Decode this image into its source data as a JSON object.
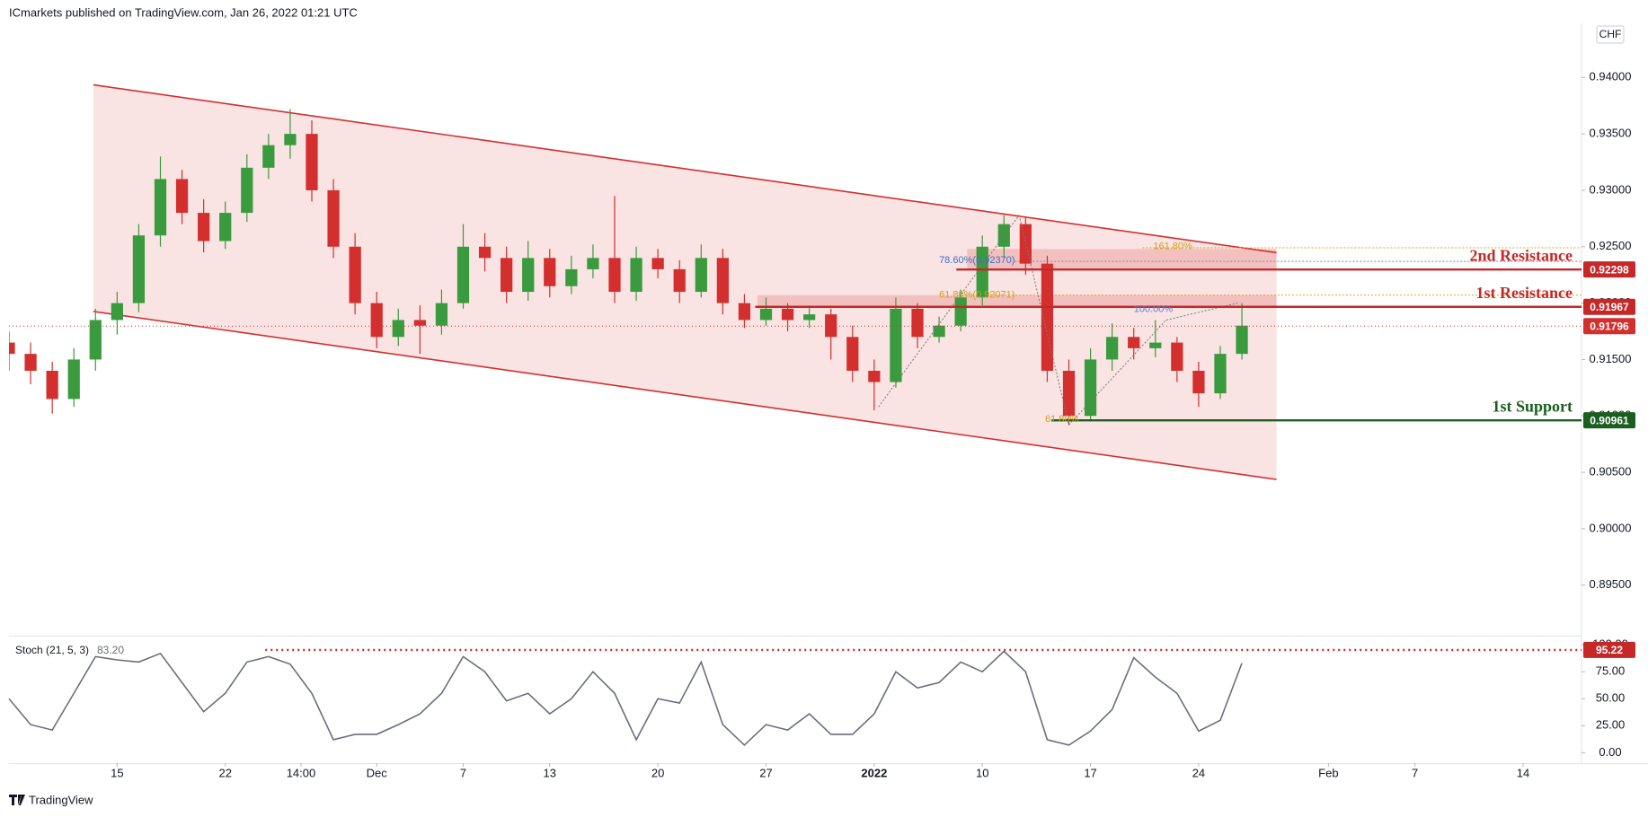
{
  "chart_data": {
    "type": "candlestick",
    "header": "ICmarkets published on TradingView.com, Jan 26, 2022 01:21 UTC",
    "currency": "CHF",
    "footer": "TradingView",
    "up_color": "#3a9a3e",
    "down_color": "#d32f2f",
    "xlim": [
      0,
      72.7
    ],
    "xticks": [
      {
        "value": 5,
        "label": "15"
      },
      {
        "value": 10,
        "label": "22"
      },
      {
        "value": 13.5,
        "label": "14:00"
      },
      {
        "value": 17,
        "label": "Dec"
      },
      {
        "value": 21,
        "label": "7"
      },
      {
        "value": 25,
        "label": "13"
      },
      {
        "value": 30,
        "label": "20"
      },
      {
        "value": 35,
        "label": "27"
      },
      {
        "value": 40,
        "label": "2022"
      },
      {
        "value": 45,
        "label": "10"
      },
      {
        "value": 50,
        "label": "17"
      },
      {
        "value": 55,
        "label": "24"
      },
      {
        "value": 61,
        "label": "Feb"
      },
      {
        "value": 65,
        "label": "7"
      },
      {
        "value": 70,
        "label": "14"
      }
    ],
    "ylim": [
      0.8906,
      0.9448
    ],
    "yticks": [
      {
        "value": 0.895,
        "label": "0.89500"
      },
      {
        "value": 0.9,
        "label": "0.90000"
      },
      {
        "value": 0.905,
        "label": "0.90500"
      },
      {
        "value": 0.91,
        "label": "0.91000"
      },
      {
        "value": 0.915,
        "label": "0.91500"
      },
      {
        "value": 0.92,
        "label": "0.92000"
      },
      {
        "value": 0.925,
        "label": "0.92500"
      },
      {
        "value": 0.93,
        "label": "0.93000"
      },
      {
        "value": 0.935,
        "label": "0.93500"
      },
      {
        "value": 0.94,
        "label": "0.94000"
      }
    ],
    "grid": false,
    "candles": {
      "x": [
        0,
        1,
        2,
        3,
        4,
        5,
        6,
        7,
        8,
        9,
        10,
        11,
        12,
        13,
        14,
        15,
        16,
        17,
        18,
        19,
        20,
        21,
        22,
        23,
        24,
        25,
        26,
        27,
        28,
        29,
        30,
        31,
        32,
        33,
        34,
        35,
        36,
        37,
        38,
        39,
        40,
        41,
        42,
        43,
        44,
        45,
        46,
        47,
        48,
        49,
        50,
        51,
        52,
        53,
        54,
        55,
        56,
        57
      ],
      "open": [
        0.9165,
        0.9155,
        0.914,
        0.9115,
        0.915,
        0.9185,
        0.92,
        0.926,
        0.931,
        0.928,
        0.9255,
        0.928,
        0.932,
        0.934,
        0.935,
        0.93,
        0.925,
        0.92,
        0.917,
        0.9185,
        0.918,
        0.92,
        0.925,
        0.924,
        0.921,
        0.924,
        0.9215,
        0.923,
        0.924,
        0.921,
        0.924,
        0.923,
        0.921,
        0.924,
        0.92,
        0.9185,
        0.9195,
        0.9185,
        0.919,
        0.917,
        0.914,
        0.913,
        0.9195,
        0.917,
        0.918,
        0.9205,
        0.925,
        0.927,
        0.9235,
        0.914,
        0.91,
        0.915,
        0.917,
        0.916,
        0.9165,
        0.914,
        0.912,
        0.9155
      ],
      "high": [
        0.9175,
        0.9165,
        0.9148,
        0.916,
        0.9195,
        0.921,
        0.927,
        0.933,
        0.9318,
        0.9292,
        0.929,
        0.9332,
        0.935,
        0.9372,
        0.9362,
        0.931,
        0.9262,
        0.921,
        0.9195,
        0.9198,
        0.9212,
        0.927,
        0.9262,
        0.925,
        0.9255,
        0.9248,
        0.9242,
        0.9252,
        0.9295,
        0.925,
        0.9248,
        0.9238,
        0.9252,
        0.9248,
        0.9208,
        0.9205,
        0.92,
        0.9198,
        0.9195,
        0.918,
        0.915,
        0.9205,
        0.92,
        0.9188,
        0.9212,
        0.926,
        0.9278,
        0.9276,
        0.9242,
        0.915,
        0.916,
        0.9182,
        0.9178,
        0.9185,
        0.917,
        0.9148,
        0.9162,
        0.92
      ],
      "low": [
        0.914,
        0.9128,
        0.9102,
        0.9108,
        0.914,
        0.9172,
        0.9192,
        0.925,
        0.927,
        0.9245,
        0.9248,
        0.9272,
        0.931,
        0.9328,
        0.929,
        0.924,
        0.919,
        0.916,
        0.9162,
        0.9155,
        0.9172,
        0.9195,
        0.9228,
        0.92,
        0.9202,
        0.9205,
        0.9208,
        0.9222,
        0.92,
        0.9202,
        0.9222,
        0.92,
        0.9205,
        0.919,
        0.9178,
        0.918,
        0.9175,
        0.9178,
        0.915,
        0.913,
        0.9105,
        0.9125,
        0.916,
        0.9165,
        0.9175,
        0.9198,
        0.924,
        0.9225,
        0.913,
        0.9092,
        0.9095,
        0.914,
        0.915,
        0.9152,
        0.913,
        0.9108,
        0.9115,
        0.915
      ],
      "close": [
        0.9155,
        0.914,
        0.9115,
        0.915,
        0.9185,
        0.92,
        0.926,
        0.931,
        0.928,
        0.9255,
        0.928,
        0.932,
        0.934,
        0.935,
        0.93,
        0.925,
        0.92,
        0.917,
        0.9185,
        0.918,
        0.92,
        0.925,
        0.924,
        0.921,
        0.924,
        0.9215,
        0.923,
        0.924,
        0.921,
        0.924,
        0.923,
        0.921,
        0.924,
        0.92,
        0.9185,
        0.9195,
        0.9185,
        0.919,
        0.917,
        0.914,
        0.913,
        0.9195,
        0.917,
        0.918,
        0.9205,
        0.925,
        0.927,
        0.9235,
        0.914,
        0.91,
        0.915,
        0.917,
        0.916,
        0.9165,
        0.914,
        0.912,
        0.9155,
        0.918
      ]
    },
    "channel": {
      "color": "#d32f2f",
      "fill": "#f8dcdc",
      "upper": [
        [
          3.9,
          0.93935
        ],
        [
          58.6,
          0.92447
        ]
      ],
      "lower": [
        [
          3.9,
          0.91926
        ],
        [
          58.6,
          0.90437
        ]
      ]
    },
    "zones": [
      {
        "from": 34.6,
        "to": 58.6,
        "low": 0.91967,
        "high": 0.9207,
        "color": "#f0b4b4"
      },
      {
        "from": 44.3,
        "to": 58.6,
        "low": 0.92298,
        "high": 0.9248,
        "color": "#f0b4b4"
      }
    ],
    "levels": [
      {
        "value": 0.92298,
        "name": "2nd Resistance",
        "from": 43.8,
        "color": "#c62828",
        "style": "solid"
      },
      {
        "value": 0.91967,
        "name": "1st Resistance",
        "from": 34.5,
        "color": "#c62828",
        "style": "solid"
      },
      {
        "value": 0.91796,
        "from": 0,
        "color": "#d32f2f",
        "style": "dotted"
      },
      {
        "value": 0.90961,
        "name": "1st Support",
        "from": 48.2,
        "color": "#1b5e20",
        "style": "solid"
      }
    ],
    "fib_lines": [
      {
        "value": 0.9249,
        "from": 52.4,
        "color": "#e0a020"
      },
      {
        "value": 0.9207,
        "from": 44.2,
        "color": "#e0a020"
      },
      {
        "value": 0.9237,
        "from": 46.5,
        "color": "#888888"
      },
      {
        "value": 0.91967,
        "from": 52.0,
        "color": "#5b7fd6"
      }
    ],
    "fib_labels": [
      {
        "text": "161.80%",
        "x": 52.9,
        "price": 0.925,
        "color": "#d4a017"
      },
      {
        "text": "78.60%(0.92370)",
        "x": 43.0,
        "price": 0.9238,
        "color": "#3c6fc9"
      },
      {
        "text": "61.80%(0.92071)",
        "x": 43.0,
        "price": 0.9207,
        "color": "#d4a017"
      },
      {
        "text": "100.00%",
        "x": 52.0,
        "price": 0.91945,
        "color": "#5b7fd6"
      },
      {
        "text": "61.80%",
        "x": 47.9,
        "price": 0.9097,
        "color": "#d4a017"
      }
    ],
    "fib_connectors": [
      [
        [
          40.2,
          0.9108
        ],
        [
          46.7,
          0.9278
        ]
      ],
      [
        [
          46.7,
          0.9278
        ],
        [
          49.0,
          0.9092
        ]
      ],
      [
        [
          49.0,
          0.9092
        ],
        [
          53.5,
          0.9185
        ]
      ],
      [
        [
          53.5,
          0.9185
        ],
        [
          56.8,
          0.92
        ]
      ]
    ],
    "stoch": {
      "label": "Stoch (21, 5, 3)",
      "last": {
        "value": 83.2,
        "label": "83.20"
      },
      "color": "#6b6f7a",
      "ylim": [
        -9.7,
        106.8
      ],
      "yticks": [
        {
          "value": 0,
          "label": "0.00"
        },
        {
          "value": 25,
          "label": "25.00"
        },
        {
          "value": 50,
          "label": "50.00"
        },
        {
          "value": 75,
          "label": "75.00"
        },
        {
          "value": 100,
          "label": "100.00"
        }
      ],
      "level": 95.22,
      "level_from": 11.85,
      "level_color": "#c62828",
      "values": [
        50,
        26,
        21,
        55,
        89,
        86,
        84,
        92,
        65,
        38,
        55,
        84,
        89,
        82,
        55,
        12,
        17,
        17,
        26,
        36,
        55,
        89,
        75,
        48,
        55,
        36,
        50,
        75,
        55,
        12,
        50,
        46,
        84,
        26,
        7,
        26,
        21,
        36,
        17,
        17,
        36,
        75,
        60,
        65,
        84,
        75,
        94,
        75,
        12,
        7,
        20,
        40,
        88,
        70,
        55,
        20,
        30,
        83
      ]
    }
  }
}
